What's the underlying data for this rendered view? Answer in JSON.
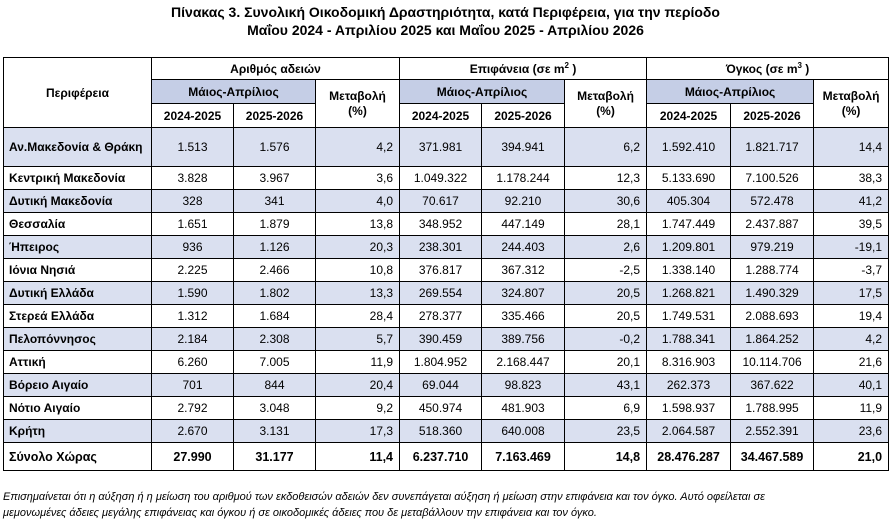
{
  "title": {
    "line1": "Πίνακας 3. Συνολική Οικοδομική Δραστηριότητα, κατά Περιφέρεια, για την περίοδο",
    "line2": "Μαΐου 2024 - Απριλίου 2025 και Μαΐου 2025 - Απριλίου 2026"
  },
  "headers": {
    "region": "Περιφέρεια",
    "permits": "Αριθμός αδειών",
    "surface": "Επιφάνεια (σε m",
    "surface_sup": "2",
    "volume": "Όγκος (σε m",
    "volume_sup": "3",
    "unit_close": " )",
    "period": "Μάιος-Απρίλιος",
    "change": "Μεταβολή",
    "pct": "(%)",
    "y1": "2024-2025",
    "y2": "2025-2026"
  },
  "rows": [
    {
      "region": "Αν.Μακεδονία & Θράκη",
      "p1": "1.513",
      "p2": "1.576",
      "pc": "4,2",
      "s1": "371.981",
      "s2": "394.941",
      "sc": "6,2",
      "v1": "1.592.410",
      "v2": "1.821.717",
      "vc": "14,4"
    },
    {
      "region": "Κεντρική Μακεδονία",
      "p1": "3.828",
      "p2": "3.967",
      "pc": "3,6",
      "s1": "1.049.322",
      "s2": "1.178.244",
      "sc": "12,3",
      "v1": "5.133.690",
      "v2": "7.100.526",
      "vc": "38,3"
    },
    {
      "region": "Δυτική Μακεδονία",
      "p1": "328",
      "p2": "341",
      "pc": "4,0",
      "s1": "70.617",
      "s2": "92.210",
      "sc": "30,6",
      "v1": "405.304",
      "v2": "572.478",
      "vc": "41,2"
    },
    {
      "region": "Θεσσαλία",
      "p1": "1.651",
      "p2": "1.879",
      "pc": "13,8",
      "s1": "348.952",
      "s2": "447.149",
      "sc": "28,1",
      "v1": "1.747.449",
      "v2": "2.437.887",
      "vc": "39,5"
    },
    {
      "region": "Ήπειρος",
      "p1": "936",
      "p2": "1.126",
      "pc": "20,3",
      "s1": "238.301",
      "s2": "244.403",
      "sc": "2,6",
      "v1": "1.209.801",
      "v2": "979.219",
      "vc": "-19,1"
    },
    {
      "region": "Ιόνια Νησιά",
      "p1": "2.225",
      "p2": "2.466",
      "pc": "10,8",
      "s1": "376.817",
      "s2": "367.312",
      "sc": "-2,5",
      "v1": "1.338.140",
      "v2": "1.288.774",
      "vc": "-3,7"
    },
    {
      "region": "Δυτική Ελλάδα",
      "p1": "1.590",
      "p2": "1.802",
      "pc": "13,3",
      "s1": "269.554",
      "s2": "324.807",
      "sc": "20,5",
      "v1": "1.268.821",
      "v2": "1.490.329",
      "vc": "17,5"
    },
    {
      "region": "Στερεά Ελλάδα",
      "p1": "1.312",
      "p2": "1.684",
      "pc": "28,4",
      "s1": "278.377",
      "s2": "335.466",
      "sc": "20,5",
      "v1": "1.749.531",
      "v2": "2.088.693",
      "vc": "19,4"
    },
    {
      "region": "Πελοπόννησος",
      "p1": "2.184",
      "p2": "2.308",
      "pc": "5,7",
      "s1": "390.459",
      "s2": "389.756",
      "sc": "-0,2",
      "v1": "1.788.341",
      "v2": "1.864.252",
      "vc": "4,2"
    },
    {
      "region": "Αττική",
      "p1": "6.260",
      "p2": "7.005",
      "pc": "11,9",
      "s1": "1.804.952",
      "s2": "2.168.447",
      "sc": "20,1",
      "v1": "8.316.903",
      "v2": "10.114.706",
      "vc": "21,6"
    },
    {
      "region": "Βόρειο Αιγαίο",
      "p1": "701",
      "p2": "844",
      "pc": "20,4",
      "s1": "69.044",
      "s2": "98.823",
      "sc": "43,1",
      "v1": "262.373",
      "v2": "367.622",
      "vc": "40,1"
    },
    {
      "region": "Νότιο Αιγαίο",
      "p1": "2.792",
      "p2": "3.048",
      "pc": "9,2",
      "s1": "450.974",
      "s2": "481.903",
      "sc": "6,9",
      "v1": "1.598.937",
      "v2": "1.788.995",
      "vc": "11,9"
    },
    {
      "region": "Κρήτη",
      "p1": "2.670",
      "p2": "3.131",
      "pc": "17,3",
      "s1": "518.360",
      "s2": "640.008",
      "sc": "23,5",
      "v1": "2.064.587",
      "v2": "2.552.391",
      "vc": "23,6"
    }
  ],
  "total": {
    "region": "Σύνολο Χώρας",
    "p1": "27.990",
    "p2": "31.177",
    "pc": "11,4",
    "s1": "6.237.710",
    "s2": "7.163.469",
    "sc": "14,8",
    "v1": "28.476.287",
    "v2": "34.467.589",
    "vc": "21,0"
  },
  "note": {
    "line1": "Επισημαίνεται ότι η αύξηση ή η μείωση του αριθμού των εκδοθεισών αδειών δεν συνεπάγεται αύξηση ή μείωση στην επιφάνεια και τον όγκο. Αυτό οφείλεται σε",
    "line2": "μεμονωμένες άδειες μεγάλης επιφάνειας και όγκου ή σε οικοδομικές άδειες που δε μεταβάλλουν την επιφάνεια και τον όγκο."
  }
}
